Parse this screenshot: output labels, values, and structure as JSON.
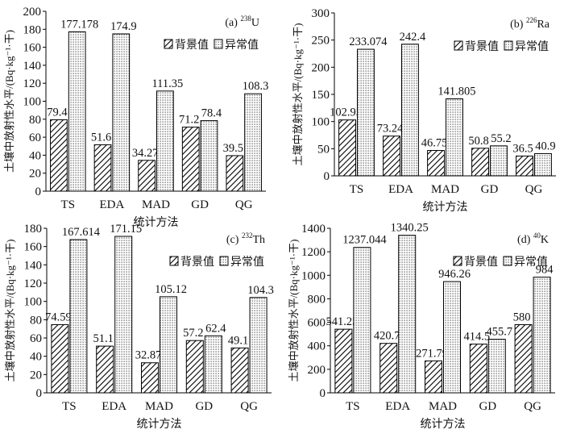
{
  "chart_data": [
    {
      "type": "bar",
      "panel_label": "(a)",
      "isotope_mass": "238",
      "isotope_symbol": "U",
      "categories": [
        "TS",
        "EDA",
        "MAD",
        "GD",
        "QG"
      ],
      "series": [
        {
          "name": "背景值",
          "values": [
            79.4,
            51.6,
            34.27,
            71.2,
            39.5
          ],
          "labels": [
            "79.4",
            "51.6",
            "34.27",
            "71.2",
            "39.5"
          ]
        },
        {
          "name": "异常值",
          "values": [
            177.178,
            174.9,
            111.35,
            78.4,
            108.3
          ],
          "labels": [
            "177.178",
            "174.9",
            "111.35",
            "78.4",
            "108.3"
          ]
        }
      ],
      "ylim": [
        0,
        200
      ],
      "ytick_step": 20,
      "ylabel": "土壤中放射性水平/(Bq·kg⁻¹·干)",
      "xlabel": "统计方法",
      "legend_position": "top-right"
    },
    {
      "type": "bar",
      "panel_label": "(b)",
      "isotope_mass": "226",
      "isotope_symbol": "Ra",
      "categories": [
        "TS",
        "EDA",
        "MAD",
        "GD",
        "QG"
      ],
      "series": [
        {
          "name": "背景值",
          "values": [
            102.95,
            73.24,
            46.75,
            50.8,
            36.5
          ],
          "labels": [
            "102.95",
            "73.24",
            "46.75",
            "50.8",
            "36.5"
          ]
        },
        {
          "name": "异常值",
          "values": [
            233.074,
            242.4,
            141.805,
            55.2,
            40.9
          ],
          "labels": [
            "233.074",
            "242.4",
            "141.805",
            "55.2",
            "40.9"
          ]
        }
      ],
      "ylim": [
        0,
        300
      ],
      "ytick_step": 50,
      "ylabel": "土壤中放射性水平/(Bq·kg⁻¹·干)",
      "xlabel": "统计方法",
      "legend_position": "top-right"
    },
    {
      "type": "bar",
      "panel_label": "(c)",
      "isotope_mass": "232",
      "isotope_symbol": "Th",
      "categories": [
        "TS",
        "EDA",
        "MAD",
        "GD",
        "QG"
      ],
      "series": [
        {
          "name": "背景值",
          "values": [
            74.59,
            51.1,
            32.87,
            57.2,
            49.1
          ],
          "labels": [
            "74.59",
            "51.1",
            "32.87",
            "57.2",
            "49.1"
          ]
        },
        {
          "name": "异常值",
          "values": [
            167.614,
            171.15,
            105.12,
            62.4,
            104.3
          ],
          "labels": [
            "167.614",
            "171.15",
            "105.12",
            "62.4",
            "104.3"
          ]
        }
      ],
      "ylim": [
        0,
        180
      ],
      "ytick_step": 20,
      "ylabel": "土壤中放射性水平/(Bq·kg⁻¹·干)",
      "xlabel": "统计方法",
      "legend_position": "top-right"
    },
    {
      "type": "bar",
      "panel_label": "(d)",
      "isotope_mass": "40",
      "isotope_symbol": "K",
      "categories": [
        "TS",
        "EDA",
        "MAD",
        "GD",
        "QG"
      ],
      "series": [
        {
          "name": "背景值",
          "values": [
            541.25,
            420.7,
            271.79,
            414.5,
            580
          ],
          "labels": [
            "541.25",
            "420.7",
            "271.79",
            "414.5",
            "580"
          ]
        },
        {
          "name": "异常值",
          "values": [
            1237.044,
            1340.25,
            946.26,
            455.7,
            984
          ],
          "labels": [
            "1237.044",
            "1340.25",
            "946.26",
            "455.7",
            "984"
          ]
        }
      ],
      "ylim": [
        0,
        1400
      ],
      "ytick_step": 200,
      "ylabel": "土壤中放射性水平/(Bq·kg⁻¹·干)",
      "xlabel": "统计方法",
      "legend_position": "top-right"
    }
  ],
  "colors": {
    "axis": "#000000",
    "bar_edge": "#000000",
    "background_fill": "#ffffff",
    "hatch": "#000000",
    "dots": "#333333"
  }
}
